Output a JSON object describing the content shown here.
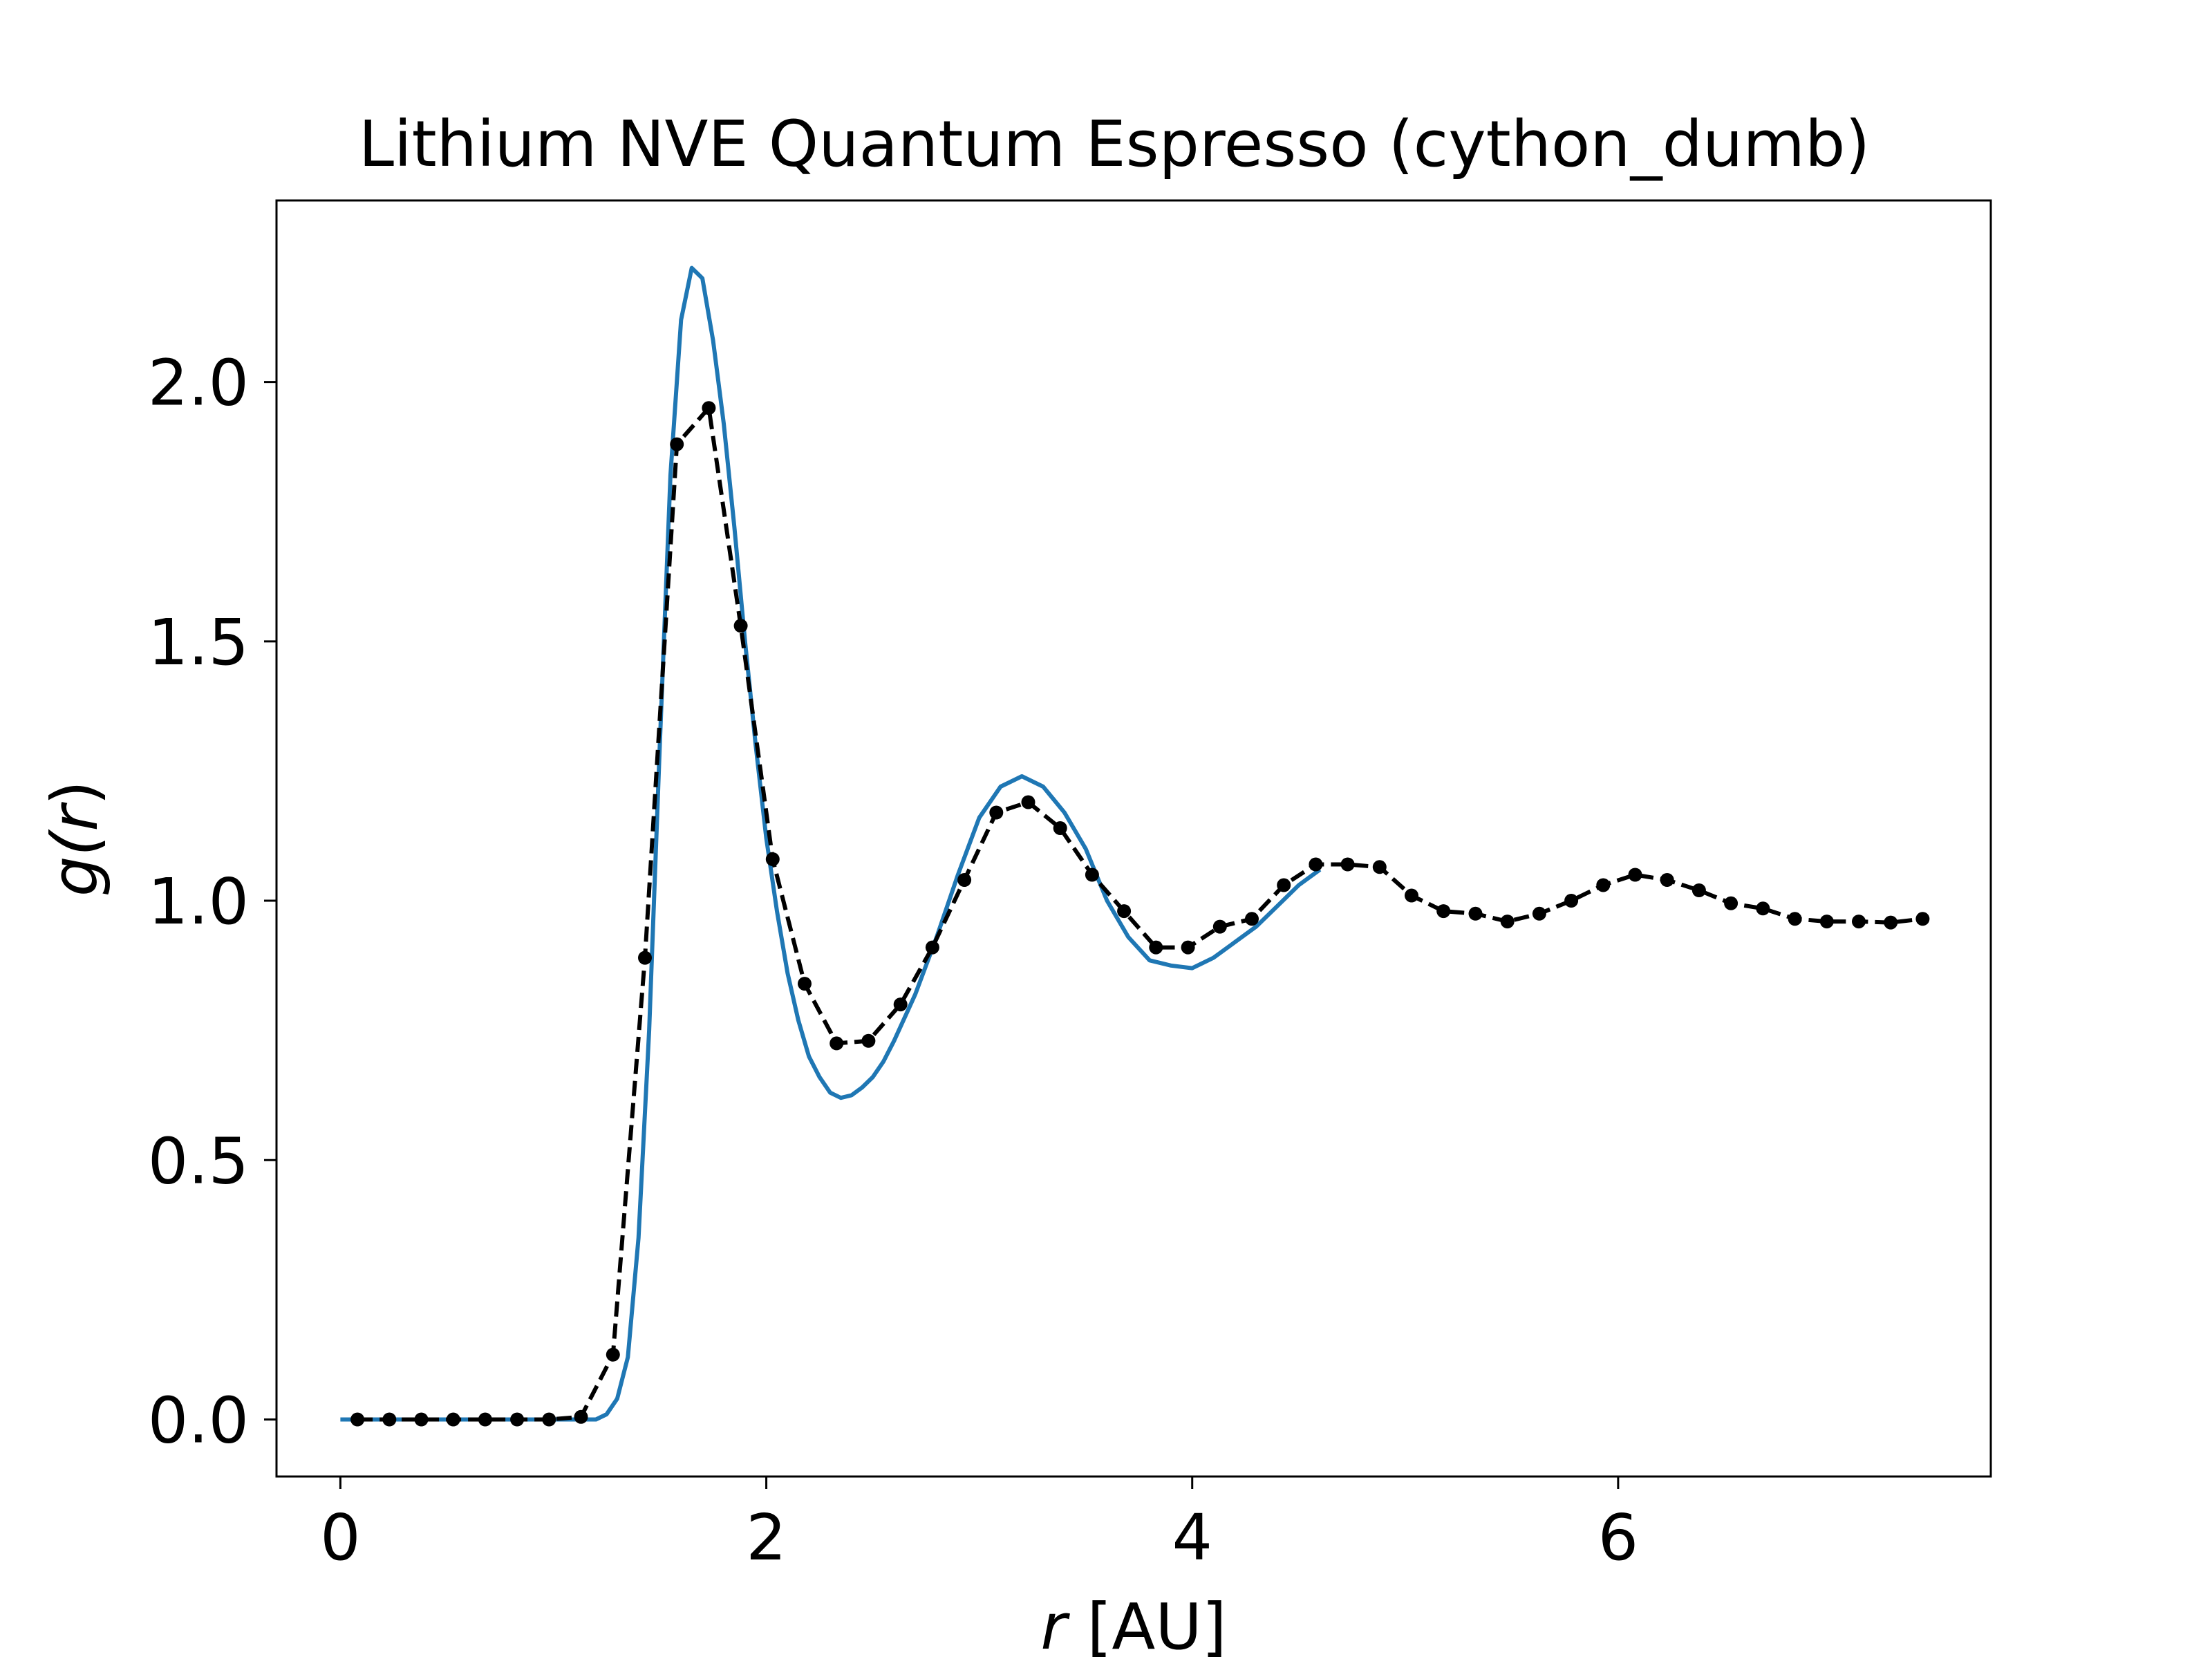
{
  "chart_data": {
    "type": "line",
    "title": "Lithium NVE Quantum Espresso (cython_dumb)",
    "xlabel_var": "r",
    "xlabel_unit": " [AU]",
    "ylabel_func": "g(",
    "ylabel_var": "r",
    "ylabel_close": ")",
    "xlim": [
      -0.3,
      7.75
    ],
    "ylim": [
      -0.11,
      2.35
    ],
    "xticks": [
      0,
      2,
      4,
      6
    ],
    "yticks": [
      0.0,
      0.5,
      1.0,
      1.5,
      2.0
    ],
    "xtick_labels": [
      "0",
      "2",
      "4",
      "6"
    ],
    "ytick_labels": [
      "0.0",
      "0.5",
      "1.0",
      "1.5",
      "2.0"
    ],
    "grid": false,
    "series": [
      {
        "style": "solid",
        "color": "#1f77b4",
        "points": [
          [
            0.0,
            0.0
          ],
          [
            0.5,
            0.0
          ],
          [
            1.0,
            0.0
          ],
          [
            1.2,
            0.0
          ],
          [
            1.25,
            0.01
          ],
          [
            1.3,
            0.04
          ],
          [
            1.35,
            0.12
          ],
          [
            1.4,
            0.35
          ],
          [
            1.45,
            0.75
          ],
          [
            1.5,
            1.3
          ],
          [
            1.55,
            1.82
          ],
          [
            1.6,
            2.12
          ],
          [
            1.65,
            2.22
          ],
          [
            1.7,
            2.2
          ],
          [
            1.75,
            2.08
          ],
          [
            1.8,
            1.92
          ],
          [
            1.85,
            1.72
          ],
          [
            1.9,
            1.5
          ],
          [
            1.95,
            1.3
          ],
          [
            2.0,
            1.12
          ],
          [
            2.05,
            0.98
          ],
          [
            2.1,
            0.86
          ],
          [
            2.15,
            0.77
          ],
          [
            2.2,
            0.7
          ],
          [
            2.25,
            0.66
          ],
          [
            2.3,
            0.63
          ],
          [
            2.35,
            0.62
          ],
          [
            2.4,
            0.625
          ],
          [
            2.45,
            0.64
          ],
          [
            2.5,
            0.66
          ],
          [
            2.55,
            0.69
          ],
          [
            2.6,
            0.73
          ],
          [
            2.7,
            0.82
          ],
          [
            2.8,
            0.93
          ],
          [
            2.9,
            1.05
          ],
          [
            3.0,
            1.16
          ],
          [
            3.1,
            1.22
          ],
          [
            3.2,
            1.24
          ],
          [
            3.3,
            1.22
          ],
          [
            3.4,
            1.17
          ],
          [
            3.5,
            1.1
          ],
          [
            3.6,
            1.0
          ],
          [
            3.7,
            0.93
          ],
          [
            3.8,
            0.885
          ],
          [
            3.9,
            0.875
          ],
          [
            4.0,
            0.87
          ],
          [
            4.1,
            0.89
          ],
          [
            4.2,
            0.92
          ],
          [
            4.3,
            0.95
          ],
          [
            4.4,
            0.99
          ],
          [
            4.5,
            1.03
          ],
          [
            4.6,
            1.06
          ]
        ]
      },
      {
        "style": "dashed-markers",
        "color": "#000000",
        "points": [
          [
            0.08,
            0.0
          ],
          [
            0.23,
            0.0
          ],
          [
            0.38,
            0.0
          ],
          [
            0.53,
            0.0
          ],
          [
            0.68,
            0.0
          ],
          [
            0.83,
            0.0
          ],
          [
            0.98,
            0.0
          ],
          [
            1.13,
            0.005
          ],
          [
            1.28,
            0.125
          ],
          [
            1.43,
            0.89
          ],
          [
            1.58,
            1.88
          ],
          [
            1.73,
            1.95
          ],
          [
            1.88,
            1.53
          ],
          [
            2.03,
            1.08
          ],
          [
            2.18,
            0.84
          ],
          [
            2.33,
            0.725
          ],
          [
            2.48,
            0.73
          ],
          [
            2.63,
            0.8
          ],
          [
            2.78,
            0.91
          ],
          [
            2.93,
            1.04
          ],
          [
            3.08,
            1.17
          ],
          [
            3.23,
            1.19
          ],
          [
            3.38,
            1.14
          ],
          [
            3.53,
            1.05
          ],
          [
            3.68,
            0.98
          ],
          [
            3.83,
            0.91
          ],
          [
            3.98,
            0.91
          ],
          [
            4.13,
            0.95
          ],
          [
            4.28,
            0.965
          ],
          [
            4.43,
            1.03
          ],
          [
            4.58,
            1.07
          ],
          [
            4.73,
            1.07
          ],
          [
            4.88,
            1.065
          ],
          [
            5.03,
            1.01
          ],
          [
            5.18,
            0.98
          ],
          [
            5.33,
            0.975
          ],
          [
            5.48,
            0.96
          ],
          [
            5.63,
            0.975
          ],
          [
            5.78,
            1.0
          ],
          [
            5.93,
            1.03
          ],
          [
            6.08,
            1.05
          ],
          [
            6.23,
            1.04
          ],
          [
            6.38,
            1.02
          ],
          [
            6.53,
            0.995
          ],
          [
            6.68,
            0.985
          ],
          [
            6.83,
            0.965
          ],
          [
            6.98,
            0.96
          ],
          [
            7.13,
            0.96
          ],
          [
            7.28,
            0.958
          ],
          [
            7.43,
            0.965
          ]
        ]
      }
    ]
  }
}
